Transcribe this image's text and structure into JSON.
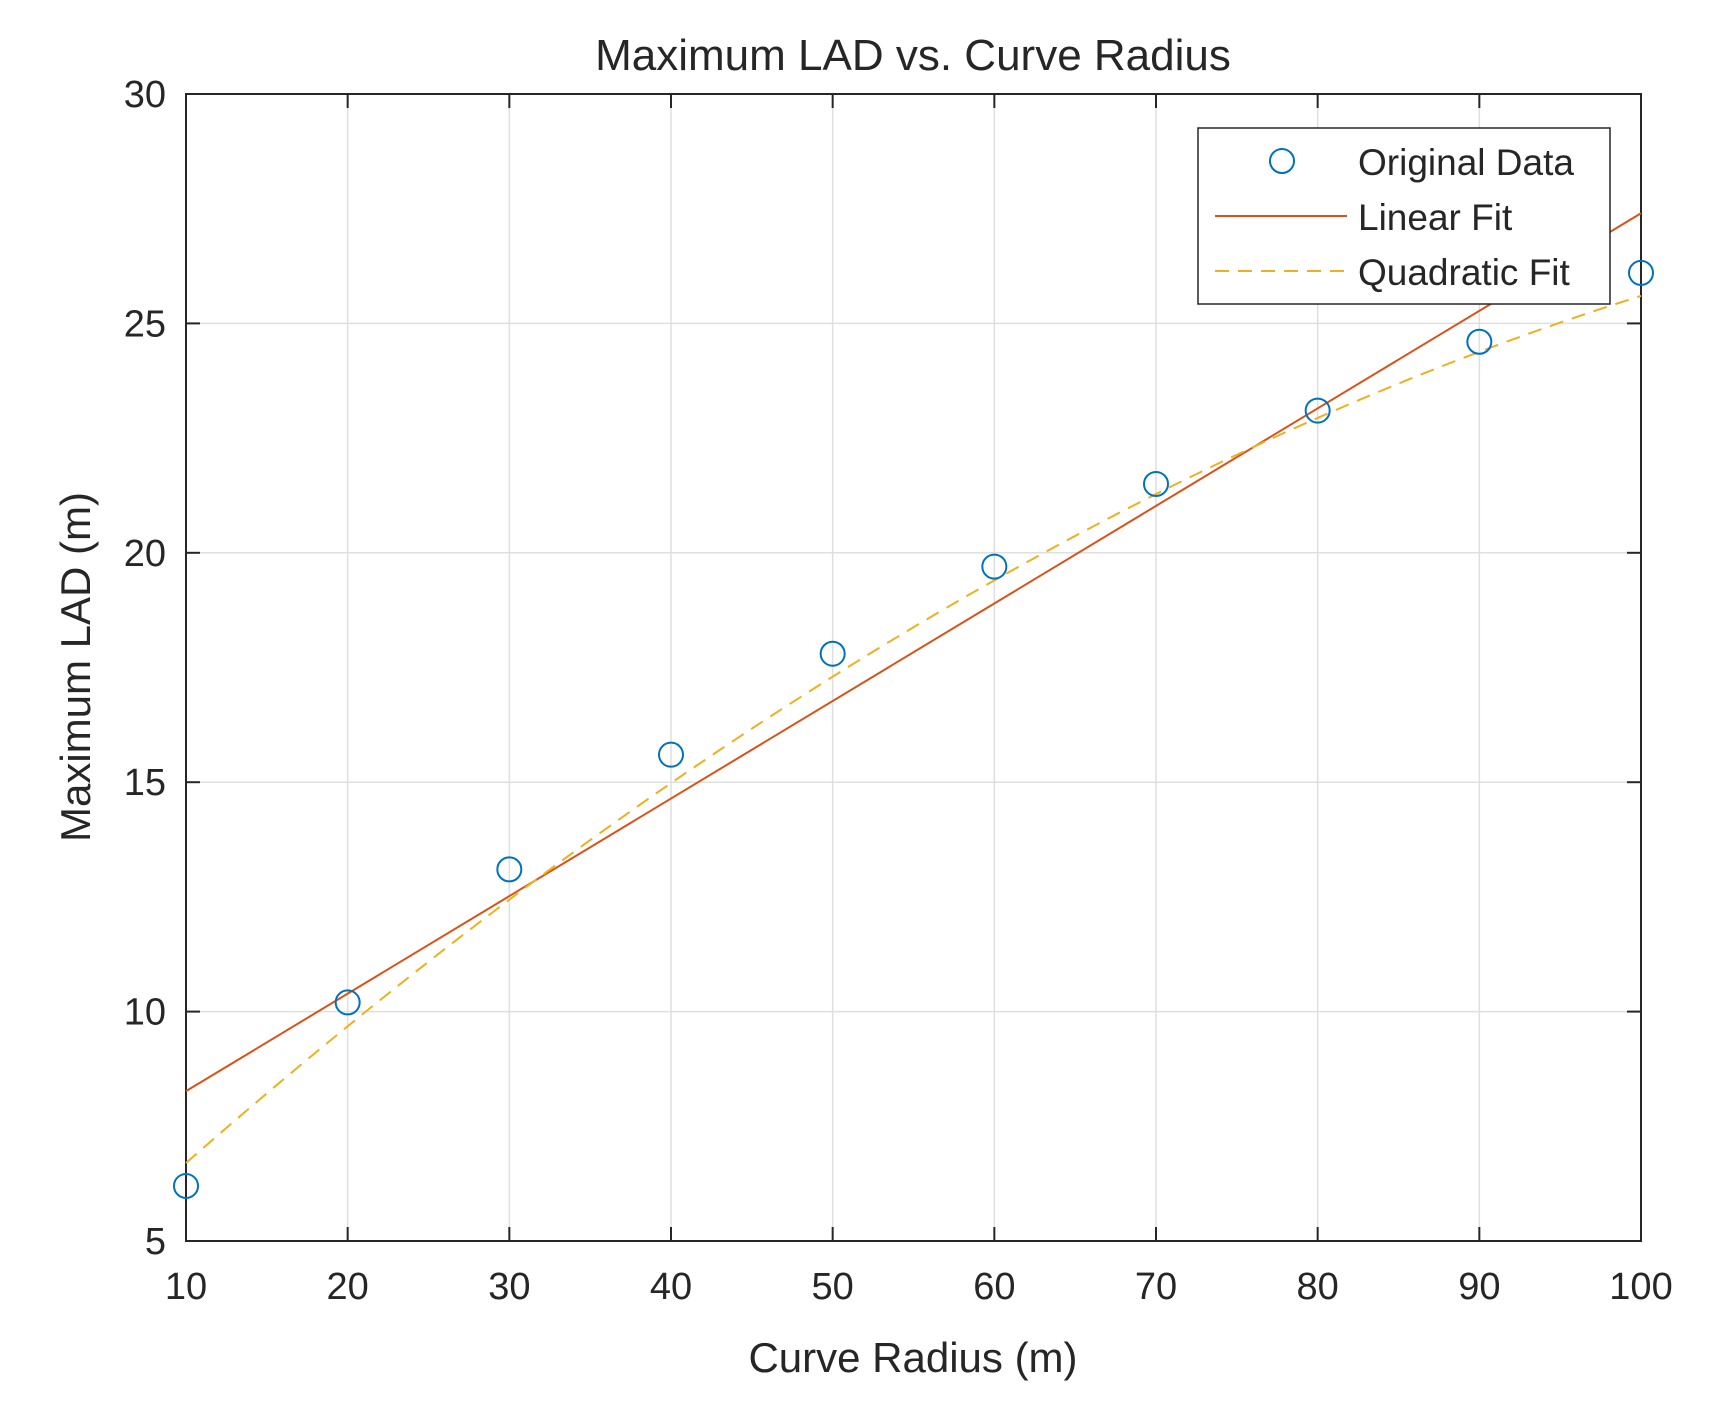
{
  "chart_data": {
    "type": "scatter",
    "title": "Maximum LAD vs. Curve Radius",
    "xlabel": "Curve Radius (m)",
    "ylabel": "Maximum LAD (m)",
    "xlim": [
      10,
      100
    ],
    "ylim": [
      5,
      30
    ],
    "x_ticks": [
      10,
      20,
      30,
      40,
      50,
      60,
      70,
      80,
      90,
      100
    ],
    "y_ticks": [
      5,
      10,
      15,
      20,
      25,
      30
    ],
    "grid": true,
    "legend_position": "top-right",
    "series": [
      {
        "name": "Original Data",
        "kind": "markers",
        "marker": "circle",
        "color": "#0072BD",
        "x": [
          10,
          20,
          30,
          40,
          50,
          60,
          70,
          80,
          90,
          100
        ],
        "y": [
          6.2,
          10.2,
          13.1,
          15.6,
          17.8,
          19.7,
          21.5,
          23.1,
          24.6,
          26.1
        ]
      },
      {
        "name": "Linear Fit",
        "kind": "line",
        "line_style": "solid",
        "color": "#D95319",
        "coefficients": {
          "intercept": 6.14,
          "slope": 0.2126
        }
      },
      {
        "name": "Quadratic Fit",
        "kind": "line",
        "line_style": "dashed",
        "color": "#EDB120",
        "coefficients": {
          "a": -0.0011,
          "b": 0.331,
          "c": 3.5
        }
      }
    ]
  }
}
